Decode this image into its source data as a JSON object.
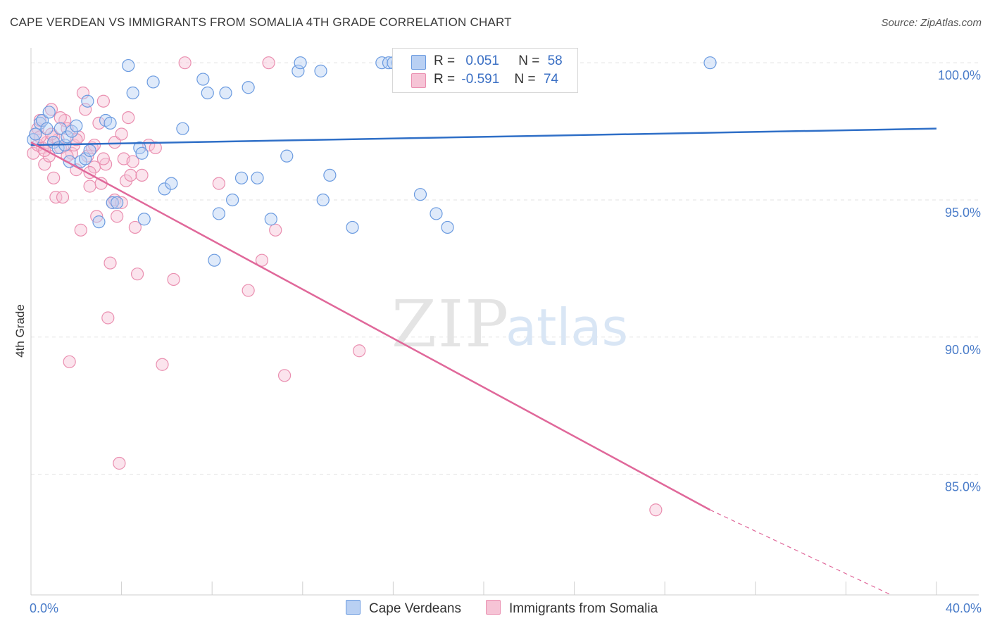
{
  "title": "CAPE VERDEAN VS IMMIGRANTS FROM SOMALIA 4TH GRADE CORRELATION CHART",
  "source": "Source: ZipAtlas.com",
  "watermark": {
    "zip": "ZIP",
    "atlas": "atlas"
  },
  "legend_top": {
    "rows": [
      {
        "r_label": "R =",
        "r_value": "0.051",
        "n_label": "N =",
        "n_value": "58"
      },
      {
        "r_label": "R =",
        "r_value": "-0.591",
        "n_label": "N =",
        "n_value": "74"
      }
    ]
  },
  "legend_bottom": {
    "blue": "Cape Verdeans",
    "pink": "Immigrants from Somalia"
  },
  "colors": {
    "blue": "#6b9be0",
    "blue_fill": "#b9d0f3",
    "blue_line": "#2f6fc7",
    "pink": "#ea8fb0",
    "pink_fill": "#f6c4d6",
    "pink_line": "#e0689a"
  },
  "chart_data": {
    "type": "scatter",
    "title": "CAPE VERDEAN VS IMMIGRANTS FROM SOMALIA 4TH GRADE CORRELATION CHART",
    "xlabel": "",
    "ylabel": "4th Grade",
    "xlim": [
      0,
      40
    ],
    "ylim": [
      80.6,
      100.8
    ],
    "x_tick_labels": [
      "0.0%",
      "40.0%"
    ],
    "y_ticks": [
      {
        "value": 100,
        "label": "100.0%"
      },
      {
        "value": 95,
        "label": "95.0%"
      },
      {
        "value": 90,
        "label": "90.0%"
      },
      {
        "value": 85,
        "label": "85.0%"
      }
    ],
    "grid": true,
    "series": [
      {
        "name": "Cape Verdeans",
        "color": "#6b9be0",
        "trend": {
          "x": [
            0,
            40
          ],
          "y": [
            97.0,
            97.6
          ],
          "dashed_from": null
        },
        "points": [
          [
            0.1,
            97.2
          ],
          [
            0.2,
            97.4
          ],
          [
            0.4,
            97.8
          ],
          [
            0.5,
            97.9
          ],
          [
            0.7,
            97.6
          ],
          [
            0.8,
            98.2
          ],
          [
            1.0,
            97.1
          ],
          [
            1.2,
            96.9
          ],
          [
            1.3,
            97.6
          ],
          [
            1.5,
            97.0
          ],
          [
            1.6,
            97.3
          ],
          [
            1.7,
            96.4
          ],
          [
            1.8,
            97.5
          ],
          [
            2.0,
            97.7
          ],
          [
            2.2,
            96.4
          ],
          [
            2.4,
            96.5
          ],
          [
            2.5,
            98.6
          ],
          [
            2.6,
            96.8
          ],
          [
            3.0,
            94.2
          ],
          [
            3.3,
            97.9
          ],
          [
            3.5,
            97.8
          ],
          [
            3.6,
            94.9
          ],
          [
            3.8,
            94.9
          ],
          [
            4.3,
            99.9
          ],
          [
            4.5,
            98.9
          ],
          [
            4.8,
            96.9
          ],
          [
            4.9,
            96.7
          ],
          [
            5.0,
            94.3
          ],
          [
            5.4,
            99.3
          ],
          [
            5.9,
            95.4
          ],
          [
            6.2,
            95.6
          ],
          [
            6.7,
            97.6
          ],
          [
            7.6,
            99.4
          ],
          [
            7.8,
            98.9
          ],
          [
            8.1,
            92.8
          ],
          [
            8.3,
            94.5
          ],
          [
            8.6,
            98.9
          ],
          [
            8.9,
            95.0
          ],
          [
            9.3,
            95.8
          ],
          [
            9.6,
            99.1
          ],
          [
            10.0,
            95.8
          ],
          [
            10.6,
            94.3
          ],
          [
            11.3,
            96.6
          ],
          [
            11.8,
            99.7
          ],
          [
            11.9,
            100.0
          ],
          [
            12.9,
            95.0
          ],
          [
            12.8,
            99.7
          ],
          [
            13.2,
            95.9
          ],
          [
            14.2,
            94.0
          ],
          [
            15.5,
            100.0
          ],
          [
            15.8,
            100.0
          ],
          [
            16.2,
            100.0
          ],
          [
            16.0,
            100.0
          ],
          [
            16.3,
            100.0
          ],
          [
            17.2,
            95.2
          ],
          [
            17.9,
            94.5
          ],
          [
            18.4,
            94.0
          ],
          [
            30.0,
            100.0
          ]
        ]
      },
      {
        "name": "Immigrants from Somalia",
        "color": "#ea8fb0",
        "trend": {
          "x": [
            0,
            30
          ],
          "y": [
            97.1,
            83.7
          ],
          "dashed_from": 30,
          "dashed_to": [
            38,
            80.6
          ]
        },
        "points": [
          [
            0.1,
            96.7
          ],
          [
            0.2,
            97.4
          ],
          [
            0.3,
            97.6
          ],
          [
            0.4,
            97.9
          ],
          [
            0.5,
            96.9
          ],
          [
            0.6,
            96.3
          ],
          [
            0.7,
            97.1
          ],
          [
            0.8,
            96.6
          ],
          [
            0.9,
            98.3
          ],
          [
            1.0,
            97.3
          ],
          [
            1.0,
            95.8
          ],
          [
            1.1,
            95.1
          ],
          [
            1.2,
            97.2
          ],
          [
            1.3,
            96.9
          ],
          [
            1.4,
            95.1
          ],
          [
            1.5,
            97.9
          ],
          [
            1.6,
            97.6
          ],
          [
            1.7,
            89.1
          ],
          [
            1.8,
            96.7
          ],
          [
            1.9,
            97.0
          ],
          [
            2.0,
            96.1
          ],
          [
            2.1,
            97.3
          ],
          [
            2.2,
            93.9
          ],
          [
            2.3,
            98.9
          ],
          [
            2.4,
            98.3
          ],
          [
            2.5,
            96.6
          ],
          [
            2.6,
            95.5
          ],
          [
            2.7,
            96.9
          ],
          [
            2.8,
            96.2
          ],
          [
            2.9,
            94.4
          ],
          [
            3.0,
            97.8
          ],
          [
            3.1,
            95.6
          ],
          [
            3.2,
            98.6
          ],
          [
            3.3,
            96.3
          ],
          [
            3.4,
            90.7
          ],
          [
            3.5,
            92.7
          ],
          [
            3.6,
            94.9
          ],
          [
            3.7,
            97.1
          ],
          [
            3.8,
            94.4
          ],
          [
            3.9,
            85.4
          ],
          [
            4.0,
            97.4
          ],
          [
            4.1,
            96.5
          ],
          [
            4.2,
            95.7
          ],
          [
            4.3,
            98.0
          ],
          [
            4.4,
            95.9
          ],
          [
            4.5,
            96.4
          ],
          [
            4.6,
            94.0
          ],
          [
            4.7,
            92.3
          ],
          [
            4.9,
            95.9
          ],
          [
            5.2,
            97.0
          ],
          [
            5.5,
            96.9
          ],
          [
            5.8,
            89.0
          ],
          [
            6.3,
            92.1
          ],
          [
            6.8,
            100.0
          ],
          [
            8.3,
            95.6
          ],
          [
            9.6,
            91.7
          ],
          [
            10.2,
            92.8
          ],
          [
            10.8,
            93.9
          ],
          [
            10.5,
            100.0
          ],
          [
            11.2,
            88.6
          ],
          [
            14.5,
            89.5
          ],
          [
            27.6,
            83.7
          ],
          [
            0.3,
            97.0
          ],
          [
            0.6,
            96.8
          ],
          [
            0.9,
            97.4
          ],
          [
            1.3,
            98.0
          ],
          [
            2.0,
            97.2
          ],
          [
            2.6,
            96.0
          ],
          [
            3.2,
            96.5
          ],
          [
            3.7,
            95.0
          ],
          [
            4.0,
            94.9
          ],
          [
            1.6,
            96.6
          ],
          [
            0.4,
            97.3
          ],
          [
            2.8,
            97.0
          ]
        ]
      }
    ],
    "legend_position": "top-center"
  }
}
